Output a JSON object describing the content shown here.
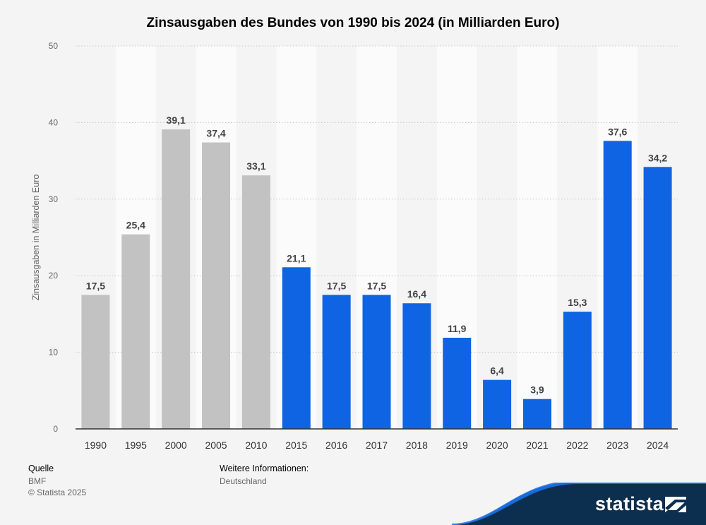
{
  "title": "Zinsausgaben des Bundes von 1990 bis 2024 (in Milliarden Euro)",
  "chart_data": {
    "type": "bar",
    "title": "Zinsausgaben des Bundes von 1990 bis 2024 (in Milliarden Euro)",
    "xlabel": "",
    "ylabel": "Zinsausgaben in Milliarden Euro",
    "ylim": [
      0,
      50
    ],
    "yticks": [
      0,
      10,
      20,
      30,
      40,
      50
    ],
    "grid": true,
    "categories": [
      "1990",
      "1995",
      "2000",
      "2005",
      "2010",
      "2015",
      "2016",
      "2017",
      "2018",
      "2019",
      "2020",
      "2021",
      "2022",
      "2023",
      "2024"
    ],
    "values": [
      17.5,
      25.4,
      39.1,
      37.4,
      33.1,
      21.1,
      17.5,
      17.5,
      16.4,
      11.9,
      6.4,
      3.9,
      15.3,
      37.6,
      34.2
    ],
    "value_labels": [
      "17,5",
      "25,4",
      "39,1",
      "37,4",
      "33,1",
      "21,1",
      "17,5",
      "17,5",
      "16,4",
      "11,9",
      "6,4",
      "3,9",
      "15,3",
      "37,6",
      "34,2"
    ],
    "colors": {
      "historic": "#c2c2c2",
      "recent": "#0f64e3",
      "band": "#fbfbfb",
      "background": "#f4f4f4",
      "grid": "#c8c8c8",
      "axis": "#333333"
    },
    "historic_count": 5
  },
  "footer": {
    "source_heading": "Quelle",
    "source": "BMF",
    "copyright": "© Statista 2025",
    "info_heading": "Weitere Informationen:",
    "info": "Deutschland"
  },
  "logo": {
    "text": "statista",
    "color": "#0c2f4f"
  }
}
